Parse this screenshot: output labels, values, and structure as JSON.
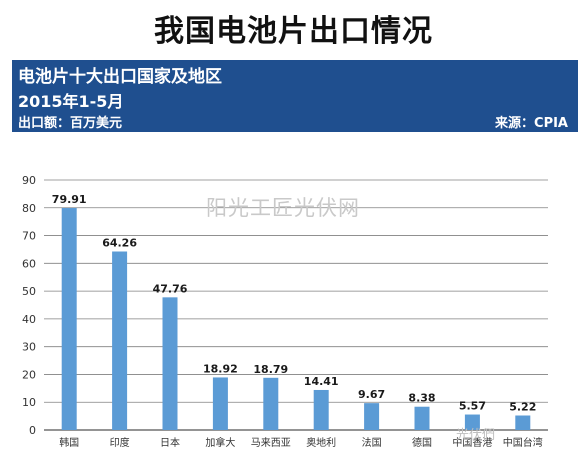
{
  "page": {
    "title": "我国电池片出口情况",
    "watermark": "阳光工匠光伏网",
    "brand_mark": "光伏們"
  },
  "header": {
    "title": "电池片十大出口国家及地区",
    "period": "2015年1-5月",
    "unit": "出口额：百万美元",
    "source": "来源：CPIA"
  },
  "colors": {
    "header_bg": "#1f4f8f",
    "bar": "#5b9bd5",
    "grid": "#808080"
  },
  "chart_data": {
    "type": "bar",
    "title": "电池片十大出口国家及地区",
    "subtitle": "2015年1-5月",
    "ylabel": "出口额：百万美元",
    "xlabel": "",
    "categories": [
      "韩国",
      "印度",
      "日本",
      "加拿大",
      "马来西亚",
      "奥地利",
      "法国",
      "德国",
      "中国香港",
      "中国台湾"
    ],
    "values": [
      79.91,
      64.26,
      47.76,
      18.92,
      18.79,
      14.41,
      9.67,
      8.38,
      5.57,
      5.22
    ],
    "value_labels": [
      "79.91",
      "64.26",
      "47.76",
      "18.92",
      "18.79",
      "14.41",
      "9.67",
      "8.38",
      "5.57",
      "5.22"
    ],
    "ylim": [
      0,
      90
    ],
    "yticks": [
      0,
      10,
      20,
      30,
      40,
      50,
      60,
      70,
      80,
      90
    ],
    "grid": true,
    "legend": "none"
  }
}
